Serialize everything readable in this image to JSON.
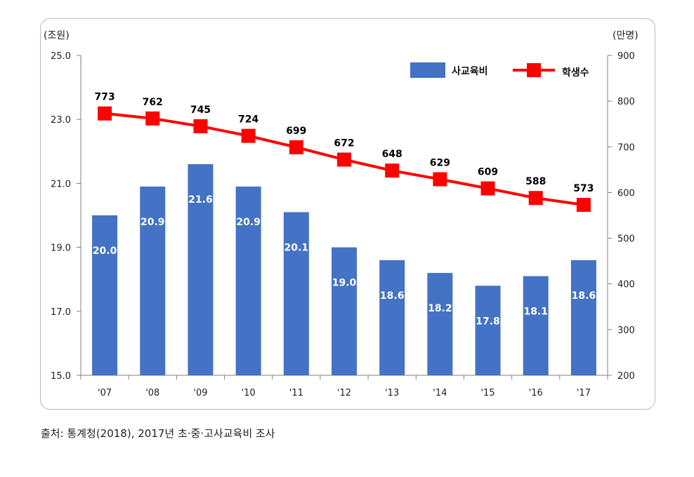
{
  "chart_data": {
    "type": "bar",
    "categories": [
      "'07",
      "'08",
      "'09",
      "'10",
      "'11",
      "'12",
      "'13",
      "'14",
      "'15",
      "'16",
      "'17"
    ],
    "series": [
      {
        "name": "사교육비",
        "kind": "bar",
        "axis": "left",
        "values": [
          20.0,
          20.9,
          21.6,
          20.9,
          20.1,
          19.0,
          18.6,
          18.2,
          17.8,
          18.1,
          18.6
        ],
        "labels": [
          "20.0",
          "20.9",
          "21.6",
          "20.9",
          "20.1",
          "19.0",
          "18.6",
          "18.2",
          "17.8",
          "18.1",
          "18.6"
        ]
      },
      {
        "name": "학생수",
        "kind": "line",
        "axis": "right",
        "values": [
          773,
          762,
          745,
          724,
          699,
          672,
          648,
          629,
          609,
          588,
          573
        ],
        "labels": [
          "773",
          "762",
          "745",
          "724",
          "699",
          "672",
          "648",
          "629",
          "609",
          "588",
          "573"
        ]
      }
    ],
    "left_axis": {
      "unit": "(조원)",
      "ylim": [
        15.0,
        25.0
      ],
      "ticks": [
        "15.0",
        "17.0",
        "19.0",
        "21.0",
        "23.0",
        "25.0"
      ]
    },
    "right_axis": {
      "unit": "(만명)",
      "ylim": [
        200,
        900
      ],
      "ticks": [
        "200",
        "300",
        "400",
        "500",
        "600",
        "700",
        "800",
        "900"
      ]
    },
    "legend_position": "top-right",
    "grid": false,
    "colors": {
      "bar": "#4472c4",
      "line": "#ff0000",
      "bar_label": "#ffffff",
      "line_label": "#000000"
    }
  },
  "source_note": "출처: 통계청(2018), 2017년 초·중·고사교육비 조사"
}
